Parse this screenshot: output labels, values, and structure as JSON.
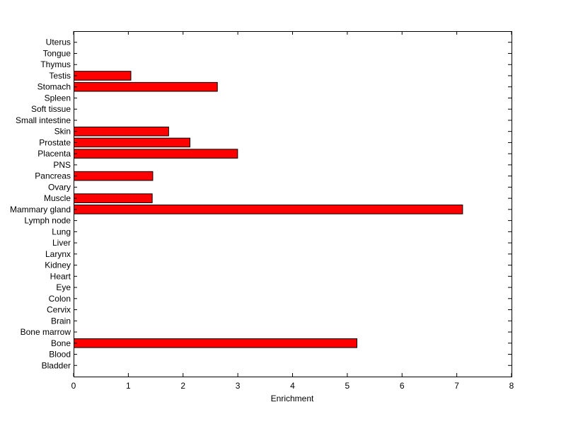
{
  "chart_data": {
    "type": "bar",
    "orientation": "horizontal",
    "xlabel": "Enrichment",
    "ylabel": "",
    "title": "",
    "xlim": [
      0,
      8
    ],
    "x_ticks": [
      0,
      1,
      2,
      3,
      4,
      5,
      6,
      7,
      8
    ],
    "grid": false,
    "bar_color": "#ff0000",
    "categories": [
      "Bladder",
      "Blood",
      "Bone",
      "Bone marrow",
      "Brain",
      "Cervix",
      "Colon",
      "Eye",
      "Heart",
      "Kidney",
      "Larynx",
      "Liver",
      "Lung",
      "Lymph node",
      "Mammary gland",
      "Muscle",
      "Ovary",
      "Pancreas",
      "PNS",
      "Placenta",
      "Prostate",
      "Skin",
      "Small intestine",
      "Soft tissue",
      "Spleen",
      "Stomach",
      "Testis",
      "Thymus",
      "Tongue",
      "Uterus"
    ],
    "values": [
      0,
      0,
      5.17,
      0,
      0,
      0,
      0,
      0,
      0,
      0,
      0,
      0,
      0,
      0,
      7.1,
      1.43,
      0,
      1.44,
      0,
      2.99,
      2.12,
      1.73,
      0,
      0,
      0,
      2.62,
      1.04,
      0,
      0,
      0
    ]
  }
}
